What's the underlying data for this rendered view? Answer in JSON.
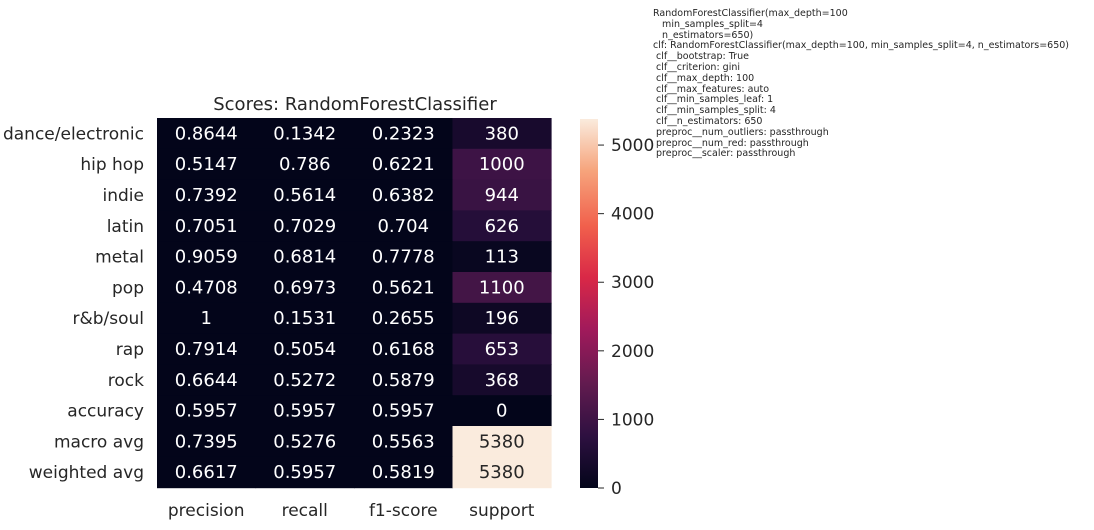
{
  "chart_data": {
    "type": "heatmap",
    "title": "Scores: RandomForestClassifier",
    "rows": [
      "dance/electronic",
      "hip hop",
      "indie",
      "latin",
      "metal",
      "pop",
      "r&b/soul",
      "rap",
      "rock",
      "accuracy",
      "macro avg",
      "weighted avg"
    ],
    "columns": [
      "precision",
      "recall",
      "f1-score",
      "support"
    ],
    "values": [
      [
        0.8644,
        0.1342,
        0.2323,
        380
      ],
      [
        0.5147,
        0.786,
        0.6221,
        1000
      ],
      [
        0.7392,
        0.5614,
        0.6382,
        944
      ],
      [
        0.7051,
        0.7029,
        0.704,
        626
      ],
      [
        0.9059,
        0.6814,
        0.7778,
        113
      ],
      [
        0.4708,
        0.6973,
        0.5621,
        1100
      ],
      [
        1,
        0.1531,
        0.2655,
        196
      ],
      [
        0.7914,
        0.5054,
        0.6168,
        653
      ],
      [
        0.6644,
        0.5272,
        0.5879,
        368
      ],
      [
        0.5957,
        0.5957,
        0.5957,
        0
      ],
      [
        0.7395,
        0.5276,
        0.5563,
        5380
      ],
      [
        0.6617,
        0.5957,
        0.5819,
        5380
      ]
    ],
    "colorbar": {
      "min": 0,
      "max": 5380,
      "ticks": [
        0,
        1000,
        2000,
        3000,
        4000,
        5000
      ]
    },
    "colormap": [
      "#03051a",
      "#2d1040",
      "#611b4f",
      "#a11a5b",
      "#d92847",
      "#f1604c",
      "#f6a47c",
      "#faebdd"
    ]
  },
  "params": {
    "lines": [
      "RandomForestClassifier(max_depth=100",
      "   min_samples_split=4",
      "   n_estimators=650)",
      "clf: RandomForestClassifier(max_depth=100, min_samples_split=4, n_estimators=650)",
      " clf__bootstrap: True",
      " clf__criterion: gini",
      " clf__max_depth: 100",
      " clf__max_features: auto",
      " clf__min_samples_leaf: 1",
      " clf__min_samples_split: 4",
      " clf__n_estimators: 650",
      " preproc__num_outliers: passthrough",
      " preproc__num_red: passthrough",
      " preproc__scaler: passthrough"
    ]
  }
}
